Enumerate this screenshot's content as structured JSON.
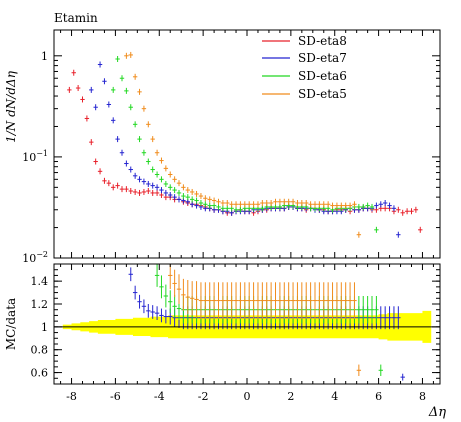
{
  "chart_data": {
    "type": "scatter",
    "title": "Etamin",
    "xlabel": "Δη",
    "ylabel": "1/N dN/dΔη",
    "ratio_ylabel": "MC/data",
    "xlim": [
      -8.8,
      8.8
    ],
    "ylim": [
      0.01,
      1.8
    ],
    "yscale": "log",
    "ratio_ylim": [
      0.5,
      1.55
    ],
    "x_ticks": [
      "-8",
      "-6",
      "-4",
      "-2",
      "0",
      "2",
      "4",
      "6",
      "8"
    ],
    "y_ticks": [
      "10^-2",
      "10^-1",
      "1"
    ],
    "ratio_ticks": [
      "0.6",
      "0.8",
      "1",
      "1.2",
      "1.4"
    ],
    "legend_position": "top-right",
    "series": [
      {
        "name": "SD-eta8",
        "color": "#e8202a",
        "xerr": 0.1,
        "x": [
          -8.1,
          -7.9,
          -7.7,
          -7.5,
          -7.3,
          -7.1,
          -6.9,
          -6.7,
          -6.5,
          -6.3,
          -6.1,
          -5.9,
          -5.7,
          -5.5,
          -5.3,
          -5.1,
          -4.9,
          -4.7,
          -4.5,
          -4.3,
          -4.1,
          -3.9,
          -3.7,
          -3.5,
          -3.3,
          -3.1,
          -2.9,
          -2.7,
          -2.5,
          -2.3,
          -2.1,
          -1.9,
          -1.7,
          -1.5,
          -1.3,
          -1.1,
          -0.9,
          -0.7,
          -0.5,
          -0.3,
          -0.1,
          0.1,
          0.3,
          0.5,
          0.7,
          0.9,
          1.1,
          1.3,
          1.5,
          1.7,
          1.9,
          2.1,
          2.3,
          2.5,
          2.7,
          2.9,
          3.1,
          3.3,
          3.5,
          3.7,
          3.9,
          4.1,
          4.3,
          4.5,
          4.7,
          4.9,
          5.1,
          5.3,
          5.5,
          5.7,
          5.9,
          6.1,
          6.3,
          6.5,
          6.7,
          6.9,
          7.1,
          7.3,
          7.5,
          7.7,
          7.9
        ],
        "y": [
          0.46,
          0.68,
          0.48,
          0.37,
          0.24,
          0.14,
          0.09,
          0.072,
          0.058,
          0.055,
          0.05,
          0.052,
          0.048,
          0.048,
          0.046,
          0.045,
          0.044,
          0.045,
          0.046,
          0.044,
          0.044,
          0.042,
          0.04,
          0.04,
          0.038,
          0.038,
          0.036,
          0.035,
          0.034,
          0.034,
          0.033,
          0.032,
          0.031,
          0.03,
          0.03,
          0.029,
          0.028,
          0.028,
          0.029,
          0.03,
          0.029,
          0.029,
          0.028,
          0.029,
          0.03,
          0.03,
          0.031,
          0.031,
          0.031,
          0.031,
          0.032,
          0.032,
          0.031,
          0.031,
          0.03,
          0.031,
          0.031,
          0.03,
          0.03,
          0.029,
          0.029,
          0.03,
          0.03,
          0.03,
          0.029,
          0.03,
          0.03,
          0.031,
          0.031,
          0.03,
          0.03,
          0.031,
          0.031,
          0.031,
          0.029,
          0.03,
          0.028,
          0.029,
          0.029,
          0.03,
          0.019
        ]
      },
      {
        "name": "SD-eta7",
        "color": "#2424d0",
        "xerr": 0.1,
        "x": [
          -7.1,
          -6.9,
          -6.7,
          -6.5,
          -6.3,
          -6.1,
          -5.9,
          -5.7,
          -5.5,
          -5.3,
          -5.1,
          -4.9,
          -4.7,
          -4.5,
          -4.3,
          -4.1,
          -3.9,
          -3.7,
          -3.5,
          -3.3,
          -3.1,
          -2.9,
          -2.7,
          -2.5,
          -2.3,
          -2.1,
          -1.9,
          -1.7,
          -1.5,
          -1.3,
          -1.1,
          -0.9,
          -0.7,
          -0.5,
          -0.3,
          -0.1,
          0.1,
          0.3,
          0.5,
          0.7,
          0.9,
          1.1,
          1.3,
          1.5,
          1.7,
          1.9,
          2.1,
          2.3,
          2.5,
          2.7,
          2.9,
          3.1,
          3.3,
          3.5,
          3.7,
          3.9,
          4.1,
          4.3,
          4.5,
          4.7,
          4.9,
          5.1,
          5.3,
          5.5,
          5.7,
          5.9,
          6.1,
          6.3,
          6.5,
          6.7,
          6.9
        ],
        "y": [
          0.46,
          0.31,
          0.82,
          0.56,
          0.33,
          0.23,
          0.15,
          0.11,
          0.086,
          0.075,
          0.065,
          0.06,
          0.057,
          0.054,
          0.052,
          0.05,
          0.047,
          0.044,
          0.042,
          0.04,
          0.038,
          0.037,
          0.036,
          0.034,
          0.033,
          0.032,
          0.031,
          0.031,
          0.03,
          0.03,
          0.029,
          0.029,
          0.028,
          0.029,
          0.029,
          0.029,
          0.029,
          0.03,
          0.03,
          0.03,
          0.031,
          0.031,
          0.031,
          0.031,
          0.031,
          0.032,
          0.032,
          0.031,
          0.031,
          0.031,
          0.031,
          0.03,
          0.03,
          0.029,
          0.029,
          0.029,
          0.029,
          0.029,
          0.03,
          0.031,
          0.03,
          0.03,
          0.031,
          0.031,
          0.031,
          0.033,
          0.034,
          0.035,
          0.033,
          0.031,
          0.017
        ]
      },
      {
        "name": "SD-eta6",
        "color": "#22d822",
        "xerr": 0.1,
        "x": [
          -6.1,
          -5.9,
          -5.7,
          -5.5,
          -5.3,
          -5.1,
          -4.9,
          -4.7,
          -4.5,
          -4.3,
          -4.1,
          -3.9,
          -3.7,
          -3.5,
          -3.3,
          -3.1,
          -2.9,
          -2.7,
          -2.5,
          -2.3,
          -2.1,
          -1.9,
          -1.7,
          -1.5,
          -1.3,
          -1.1,
          -0.9,
          -0.7,
          -0.5,
          -0.3,
          -0.1,
          0.1,
          0.3,
          0.5,
          0.7,
          0.9,
          1.1,
          1.3,
          1.5,
          1.7,
          1.9,
          2.1,
          2.3,
          2.5,
          2.7,
          2.9,
          3.1,
          3.3,
          3.5,
          3.7,
          3.9,
          4.1,
          4.3,
          4.5,
          4.7,
          4.9,
          5.1,
          5.3,
          5.5,
          5.7,
          5.9
        ],
        "y": [
          0.46,
          0.93,
          0.6,
          0.45,
          0.31,
          0.21,
          0.15,
          0.11,
          0.09,
          0.075,
          0.067,
          0.06,
          0.054,
          0.05,
          0.047,
          0.044,
          0.041,
          0.04,
          0.038,
          0.037,
          0.035,
          0.034,
          0.033,
          0.033,
          0.032,
          0.031,
          0.031,
          0.031,
          0.03,
          0.03,
          0.031,
          0.031,
          0.031,
          0.031,
          0.031,
          0.032,
          0.032,
          0.032,
          0.032,
          0.033,
          0.033,
          0.033,
          0.032,
          0.032,
          0.032,
          0.031,
          0.031,
          0.031,
          0.031,
          0.031,
          0.03,
          0.031,
          0.031,
          0.031,
          0.031,
          0.032,
          0.032,
          0.032,
          0.033,
          0.032,
          0.019
        ]
      },
      {
        "name": "SD-eta5",
        "color": "#f08c1c",
        "xerr": 0.1,
        "x": [
          -5.5,
          -5.3,
          -5.1,
          -4.9,
          -4.7,
          -4.5,
          -4.3,
          -4.1,
          -3.9,
          -3.7,
          -3.5,
          -3.3,
          -3.1,
          -2.9,
          -2.7,
          -2.5,
          -2.3,
          -2.1,
          -1.9,
          -1.7,
          -1.5,
          -1.3,
          -1.1,
          -0.9,
          -0.7,
          -0.5,
          -0.3,
          -0.1,
          0.1,
          0.3,
          0.5,
          0.7,
          0.9,
          1.1,
          1.3,
          1.5,
          1.7,
          1.9,
          2.1,
          2.3,
          2.5,
          2.7,
          2.9,
          3.1,
          3.3,
          3.5,
          3.7,
          3.9,
          4.1,
          4.3,
          4.5,
          4.7,
          4.9,
          5.1
        ],
        "y": [
          1.0,
          1.02,
          0.62,
          0.44,
          0.3,
          0.21,
          0.15,
          0.11,
          0.092,
          0.077,
          0.067,
          0.06,
          0.055,
          0.05,
          0.047,
          0.045,
          0.043,
          0.041,
          0.039,
          0.038,
          0.037,
          0.036,
          0.035,
          0.035,
          0.034,
          0.034,
          0.034,
          0.034,
          0.034,
          0.034,
          0.034,
          0.035,
          0.035,
          0.035,
          0.036,
          0.036,
          0.036,
          0.036,
          0.036,
          0.035,
          0.035,
          0.035,
          0.034,
          0.034,
          0.034,
          0.034,
          0.034,
          0.033,
          0.033,
          0.033,
          0.033,
          0.033,
          0.034,
          0.017
        ]
      }
    ],
    "ratio_series": [
      {
        "name": "SD-eta8",
        "color": "#e8202a",
        "x": [],
        "y": [],
        "yerr": []
      },
      {
        "name": "SD-eta7",
        "color": "#2424d0",
        "x": [
          -5.3,
          -5.1,
          -4.9,
          -4.7,
          -4.5,
          -4.3,
          -4.1,
          -3.9,
          -3.7,
          -3.5,
          -3.3,
          -3.1,
          -2.9,
          -2.7,
          -2.5,
          -2.3,
          -2.1,
          -1.9,
          -1.7,
          -1.5,
          -1.3,
          -1.1,
          -0.9,
          -0.7,
          -0.5,
          -0.3,
          -0.1,
          0.1,
          0.3,
          0.5,
          0.7,
          0.9,
          1.1,
          1.3,
          1.5,
          1.7,
          1.9,
          2.1,
          2.3,
          2.5,
          2.7,
          2.9,
          3.1,
          3.3,
          3.5,
          3.7,
          3.9,
          4.1,
          4.3,
          4.5,
          4.7,
          4.9,
          5.1,
          5.3,
          5.5,
          5.7,
          5.9,
          6.1,
          6.3,
          6.5,
          6.7,
          6.9,
          7.1
        ],
        "y": [
          1.46,
          1.3,
          1.22,
          1.18,
          1.14,
          1.13,
          1.12,
          1.1,
          1.09,
          1.09,
          1.08,
          1.08,
          1.08,
          1.08,
          1.08,
          1.08,
          1.08,
          1.08,
          1.08,
          1.08,
          1.08,
          1.08,
          1.08,
          1.08,
          1.08,
          1.08,
          1.08,
          1.08,
          1.08,
          1.08,
          1.08,
          1.08,
          1.08,
          1.08,
          1.08,
          1.08,
          1.08,
          1.08,
          1.08,
          1.08,
          1.08,
          1.08,
          1.08,
          1.08,
          1.08,
          1.08,
          1.08,
          1.08,
          1.08,
          1.08,
          1.08,
          1.08,
          1.08,
          1.08,
          1.08,
          1.08,
          1.08,
          1.08,
          1.08,
          1.08,
          1.08,
          1.08,
          0.56
        ],
        "yerr": [
          0.06,
          0.06,
          0.06,
          0.06,
          0.06,
          0.06,
          0.06,
          0.06,
          0.06,
          0.07,
          0.08,
          0.09,
          0.1,
          0.1,
          0.1,
          0.1,
          0.1,
          0.1,
          0.1,
          0.1,
          0.1,
          0.1,
          0.1,
          0.1,
          0.1,
          0.1,
          0.1,
          0.1,
          0.1,
          0.1,
          0.1,
          0.1,
          0.1,
          0.1,
          0.1,
          0.1,
          0.1,
          0.1,
          0.1,
          0.1,
          0.1,
          0.1,
          0.1,
          0.1,
          0.1,
          0.1,
          0.1,
          0.1,
          0.1,
          0.1,
          0.1,
          0.1,
          0.1,
          0.1,
          0.1,
          0.1,
          0.1,
          0.1,
          0.1,
          0.1,
          0.1,
          0.1,
          0.03
        ]
      },
      {
        "name": "SD-eta6",
        "color": "#22d822",
        "x": [
          -4.1,
          -3.9,
          -3.7,
          -3.5,
          -3.3,
          -3.1,
          -2.9,
          -2.7,
          -2.5,
          -2.3,
          -2.1,
          -1.9,
          -1.7,
          -1.5,
          -1.3,
          -1.1,
          -0.9,
          -0.7,
          -0.5,
          -0.3,
          -0.1,
          0.1,
          0.3,
          0.5,
          0.7,
          0.9,
          1.1,
          1.3,
          1.5,
          1.7,
          1.9,
          2.1,
          2.3,
          2.5,
          2.7,
          2.9,
          3.1,
          3.3,
          3.5,
          3.7,
          3.9,
          4.1,
          4.3,
          4.5,
          4.7,
          4.9,
          5.1,
          5.3,
          5.5,
          5.7,
          5.9,
          6.1
        ],
        "y": [
          1.45,
          1.35,
          1.27,
          1.22,
          1.18,
          1.16,
          1.15,
          1.15,
          1.15,
          1.15,
          1.15,
          1.15,
          1.15,
          1.15,
          1.15,
          1.15,
          1.15,
          1.15,
          1.15,
          1.15,
          1.15,
          1.15,
          1.15,
          1.15,
          1.15,
          1.15,
          1.15,
          1.15,
          1.15,
          1.15,
          1.15,
          1.15,
          1.15,
          1.15,
          1.15,
          1.15,
          1.15,
          1.15,
          1.15,
          1.15,
          1.15,
          1.15,
          1.15,
          1.15,
          1.15,
          1.15,
          1.15,
          1.15,
          1.15,
          1.15,
          1.15,
          0.62
        ],
        "yerr": [
          0.1,
          0.1,
          0.1,
          0.1,
          0.1,
          0.1,
          0.12,
          0.12,
          0.12,
          0.12,
          0.12,
          0.12,
          0.12,
          0.12,
          0.12,
          0.12,
          0.12,
          0.12,
          0.12,
          0.12,
          0.12,
          0.12,
          0.12,
          0.12,
          0.12,
          0.12,
          0.12,
          0.12,
          0.12,
          0.12,
          0.12,
          0.12,
          0.12,
          0.12,
          0.12,
          0.12,
          0.12,
          0.12,
          0.12,
          0.12,
          0.12,
          0.12,
          0.12,
          0.12,
          0.12,
          0.12,
          0.12,
          0.12,
          0.12,
          0.12,
          0.12,
          0.05
        ]
      },
      {
        "name": "SD-eta5",
        "color": "#f08c1c",
        "x": [
          -3.5,
          -3.3,
          -3.1,
          -2.9,
          -2.7,
          -2.5,
          -2.3,
          -2.1,
          -1.9,
          -1.7,
          -1.5,
          -1.3,
          -1.1,
          -0.9,
          -0.7,
          -0.5,
          -0.3,
          -0.1,
          0.1,
          0.3,
          0.5,
          0.7,
          0.9,
          1.1,
          1.3,
          1.5,
          1.7,
          1.9,
          2.1,
          2.3,
          2.5,
          2.7,
          2.9,
          3.1,
          3.3,
          3.5,
          3.7,
          3.9,
          4.1,
          4.3,
          4.5,
          4.7,
          4.9,
          5.1
        ],
        "y": [
          1.45,
          1.38,
          1.33,
          1.28,
          1.26,
          1.25,
          1.24,
          1.23,
          1.23,
          1.23,
          1.23,
          1.23,
          1.23,
          1.23,
          1.23,
          1.23,
          1.23,
          1.23,
          1.23,
          1.23,
          1.23,
          1.23,
          1.23,
          1.23,
          1.23,
          1.23,
          1.23,
          1.23,
          1.23,
          1.23,
          1.23,
          1.23,
          1.23,
          1.23,
          1.23,
          1.23,
          1.23,
          1.23,
          1.23,
          1.23,
          1.23,
          1.23,
          1.23,
          0.62
        ],
        "yerr": [
          0.12,
          0.12,
          0.13,
          0.14,
          0.15,
          0.15,
          0.16,
          0.16,
          0.16,
          0.16,
          0.16,
          0.16,
          0.16,
          0.16,
          0.16,
          0.16,
          0.16,
          0.16,
          0.16,
          0.16,
          0.16,
          0.16,
          0.16,
          0.16,
          0.16,
          0.16,
          0.16,
          0.16,
          0.16,
          0.16,
          0.16,
          0.16,
          0.16,
          0.16,
          0.16,
          0.16,
          0.16,
          0.16,
          0.16,
          0.16,
          0.16,
          0.16,
          0.16,
          0.05
        ]
      }
    ],
    "data_band": {
      "color": "#ffff00",
      "x": [
        -8.2,
        -7.8,
        -7.4,
        -7.0,
        -6.6,
        -6.2,
        -5.8,
        -5.4,
        -5.0,
        -4.6,
        -4.2,
        -3.8,
        -3.4,
        -3.0,
        -2.6,
        -2.2,
        -1.8,
        -1.4,
        -1.0,
        -0.6,
        -0.2,
        0.2,
        0.6,
        1.0,
        1.4,
        1.8,
        2.2,
        2.6,
        3.0,
        3.4,
        3.8,
        4.2,
        4.6,
        5.0,
        5.4,
        5.8,
        6.2,
        6.6,
        7.0,
        7.4,
        7.8,
        8.2
      ],
      "half_width": [
        0.02,
        0.03,
        0.04,
        0.05,
        0.06,
        0.06,
        0.07,
        0.07,
        0.08,
        0.08,
        0.09,
        0.09,
        0.1,
        0.1,
        0.1,
        0.1,
        0.1,
        0.1,
        0.1,
        0.1,
        0.1,
        0.1,
        0.1,
        0.1,
        0.1,
        0.1,
        0.1,
        0.1,
        0.1,
        0.1,
        0.1,
        0.1,
        0.1,
        0.1,
        0.1,
        0.1,
        0.11,
        0.12,
        0.12,
        0.12,
        0.12,
        0.14
      ]
    }
  }
}
